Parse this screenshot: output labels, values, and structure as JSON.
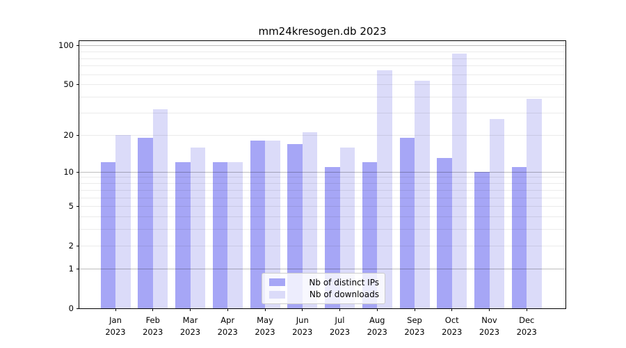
{
  "chart_data": {
    "type": "bar",
    "title": "mm24kresogen.db 2023",
    "categories": [
      "Jan 2023",
      "Feb 2023",
      "Mar 2023",
      "Apr 2023",
      "May 2023",
      "Jun 2023",
      "Jul 2023",
      "Aug 2023",
      "Sep 2023",
      "Oct 2023",
      "Nov 2023",
      "Dec 2023"
    ],
    "series": [
      {
        "name": "Nb of distinct IPs",
        "color": "#a6a6f6",
        "values": [
          12,
          19,
          12,
          12,
          18,
          17,
          11,
          12,
          19,
          13,
          10,
          11
        ]
      },
      {
        "name": "Nb of downloads",
        "color": "#dbdbf9",
        "values": [
          20,
          32,
          16,
          12,
          18,
          21,
          16,
          65,
          54,
          87,
          27,
          39
        ]
      }
    ],
    "xlabel": "",
    "ylabel": "",
    "yscale": "log1p",
    "ylim": [
      0,
      109
    ],
    "y_ticks": [
      0,
      1,
      2,
      5,
      10,
      20,
      50,
      100
    ],
    "gridlines_major": [
      1,
      10,
      100
    ],
    "gridlines_minor": [
      2,
      3,
      4,
      5,
      6,
      7,
      8,
      9,
      20,
      30,
      40,
      50,
      60,
      70,
      80,
      90
    ],
    "grid": true,
    "legend_position": "lower center",
    "background_color": "#ffffff",
    "spine_color": "#000000"
  }
}
